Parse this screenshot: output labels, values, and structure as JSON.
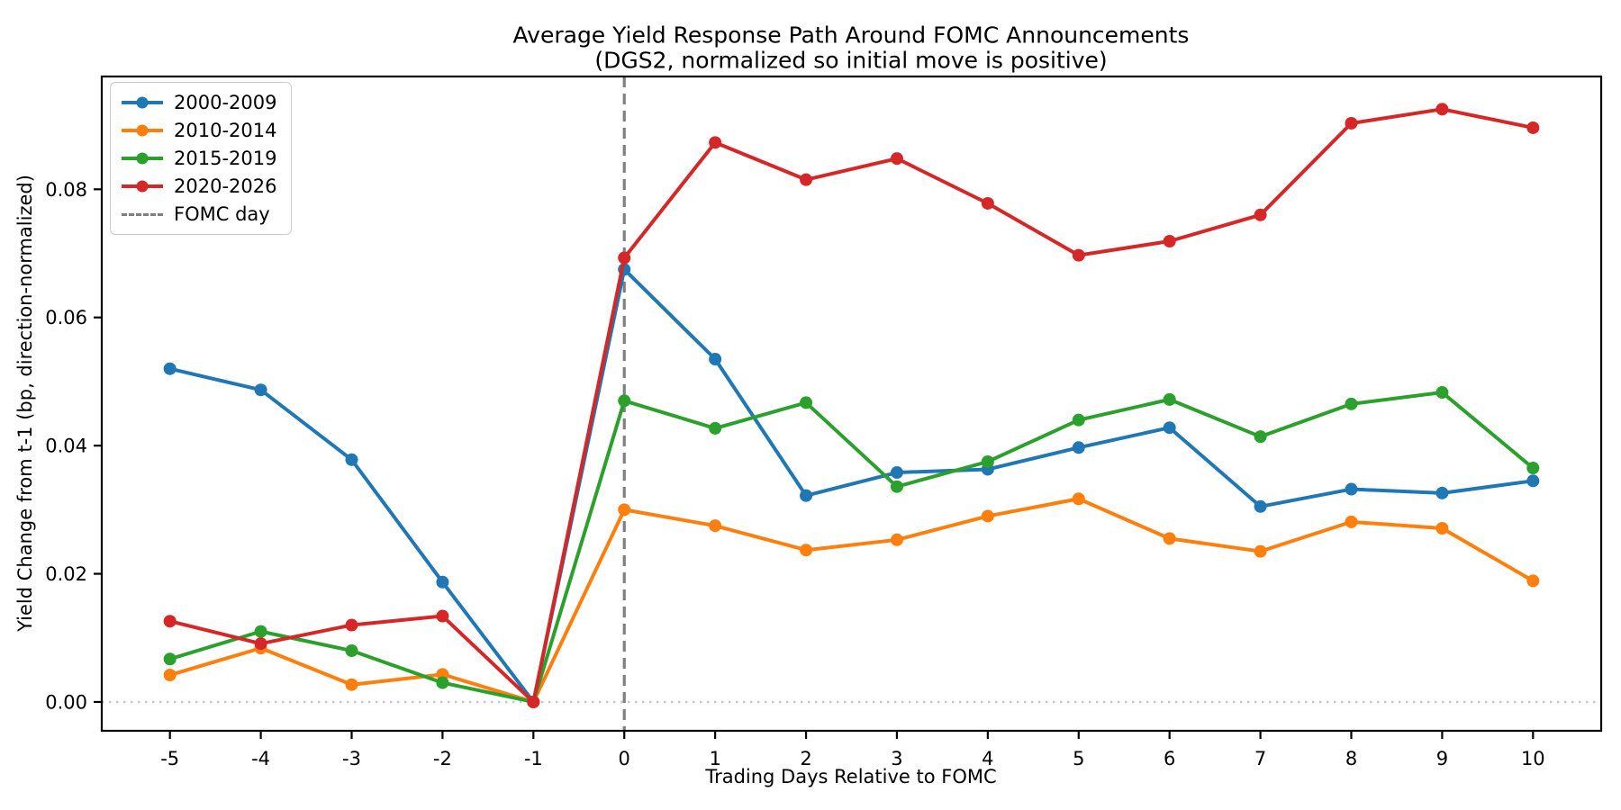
{
  "title": {
    "line1": "Average Yield Response Path Around FOMC Announcements",
    "line2": "(DGS2, normalized so initial move is positive)"
  },
  "axes": {
    "xlabel": "Trading Days Relative to FOMC",
    "ylabel": "Yield Change from t-1 (bp, direction-normalized)",
    "x_ticks": [
      -5,
      -4,
      -3,
      -2,
      -1,
      0,
      1,
      2,
      3,
      4,
      5,
      6,
      7,
      8,
      9,
      10
    ],
    "y_ticks": [
      {
        "value": 0.0,
        "label": "0.00"
      },
      {
        "value": 0.02,
        "label": "0.02"
      },
      {
        "value": 0.04,
        "label": "0.04"
      },
      {
        "value": 0.06,
        "label": "0.06"
      },
      {
        "value": 0.08,
        "label": "0.08"
      }
    ]
  },
  "legend": {
    "items": [
      {
        "label": "2000-2009",
        "color": "#1f77b4",
        "style": "line"
      },
      {
        "label": "2010-2014",
        "color": "#ff7f0e",
        "style": "line"
      },
      {
        "label": "2015-2019",
        "color": "#2ca02c",
        "style": "line"
      },
      {
        "label": "2020-2026",
        "color": "#d62728",
        "style": "line"
      },
      {
        "label": "FOMC day",
        "color": "#7f7f7f",
        "style": "dashed"
      }
    ]
  },
  "chart_data": {
    "type": "line",
    "title": "Average Yield Response Path Around FOMC Announcements (DGS2, normalized so initial move is positive)",
    "xlabel": "Trading Days Relative to FOMC",
    "ylabel": "Yield Change from t-1 (bp, direction-normalized)",
    "x": [
      -5,
      -4,
      -3,
      -2,
      -1,
      0,
      1,
      2,
      3,
      4,
      5,
      6,
      7,
      8,
      9,
      10
    ],
    "xlim": [
      -5.75,
      10.75
    ],
    "ylim": [
      -0.0045,
      0.0976
    ],
    "grid": false,
    "legend_position": "upper left",
    "series": [
      {
        "name": "2000-2009",
        "color": "#1f77b4",
        "values": [
          0.052,
          0.0487,
          0.0378,
          0.0187,
          0.0,
          0.0675,
          0.0535,
          0.0322,
          0.0358,
          0.0363,
          0.0397,
          0.0428,
          0.0305,
          0.0332,
          0.0326,
          0.0345
        ]
      },
      {
        "name": "2010-2014",
        "color": "#ff7f0e",
        "values": [
          0.0042,
          0.0084,
          0.0027,
          0.0043,
          0.0,
          0.03,
          0.0275,
          0.0237,
          0.0253,
          0.029,
          0.0317,
          0.0255,
          0.0235,
          0.0281,
          0.0271,
          0.0189
        ]
      },
      {
        "name": "2015-2019",
        "color": "#2ca02c",
        "values": [
          0.0067,
          0.011,
          0.008,
          0.003,
          0.0,
          0.047,
          0.0427,
          0.0467,
          0.0336,
          0.0375,
          0.044,
          0.0472,
          0.0414,
          0.0465,
          0.0483,
          0.0365
        ]
      },
      {
        "name": "2020-2026",
        "color": "#d62728",
        "values": [
          0.0126,
          0.0091,
          0.012,
          0.0134,
          0.0,
          0.0693,
          0.0873,
          0.0815,
          0.0848,
          0.0778,
          0.0697,
          0.0719,
          0.076,
          0.0903,
          0.0925,
          0.0896
        ]
      }
    ],
    "vline": {
      "x": 0,
      "label": "FOMC day",
      "color": "#7f7f7f",
      "style": "dashed"
    },
    "hline": {
      "y": 0.0,
      "color": "#c8c8c8",
      "style": "dotted"
    }
  }
}
